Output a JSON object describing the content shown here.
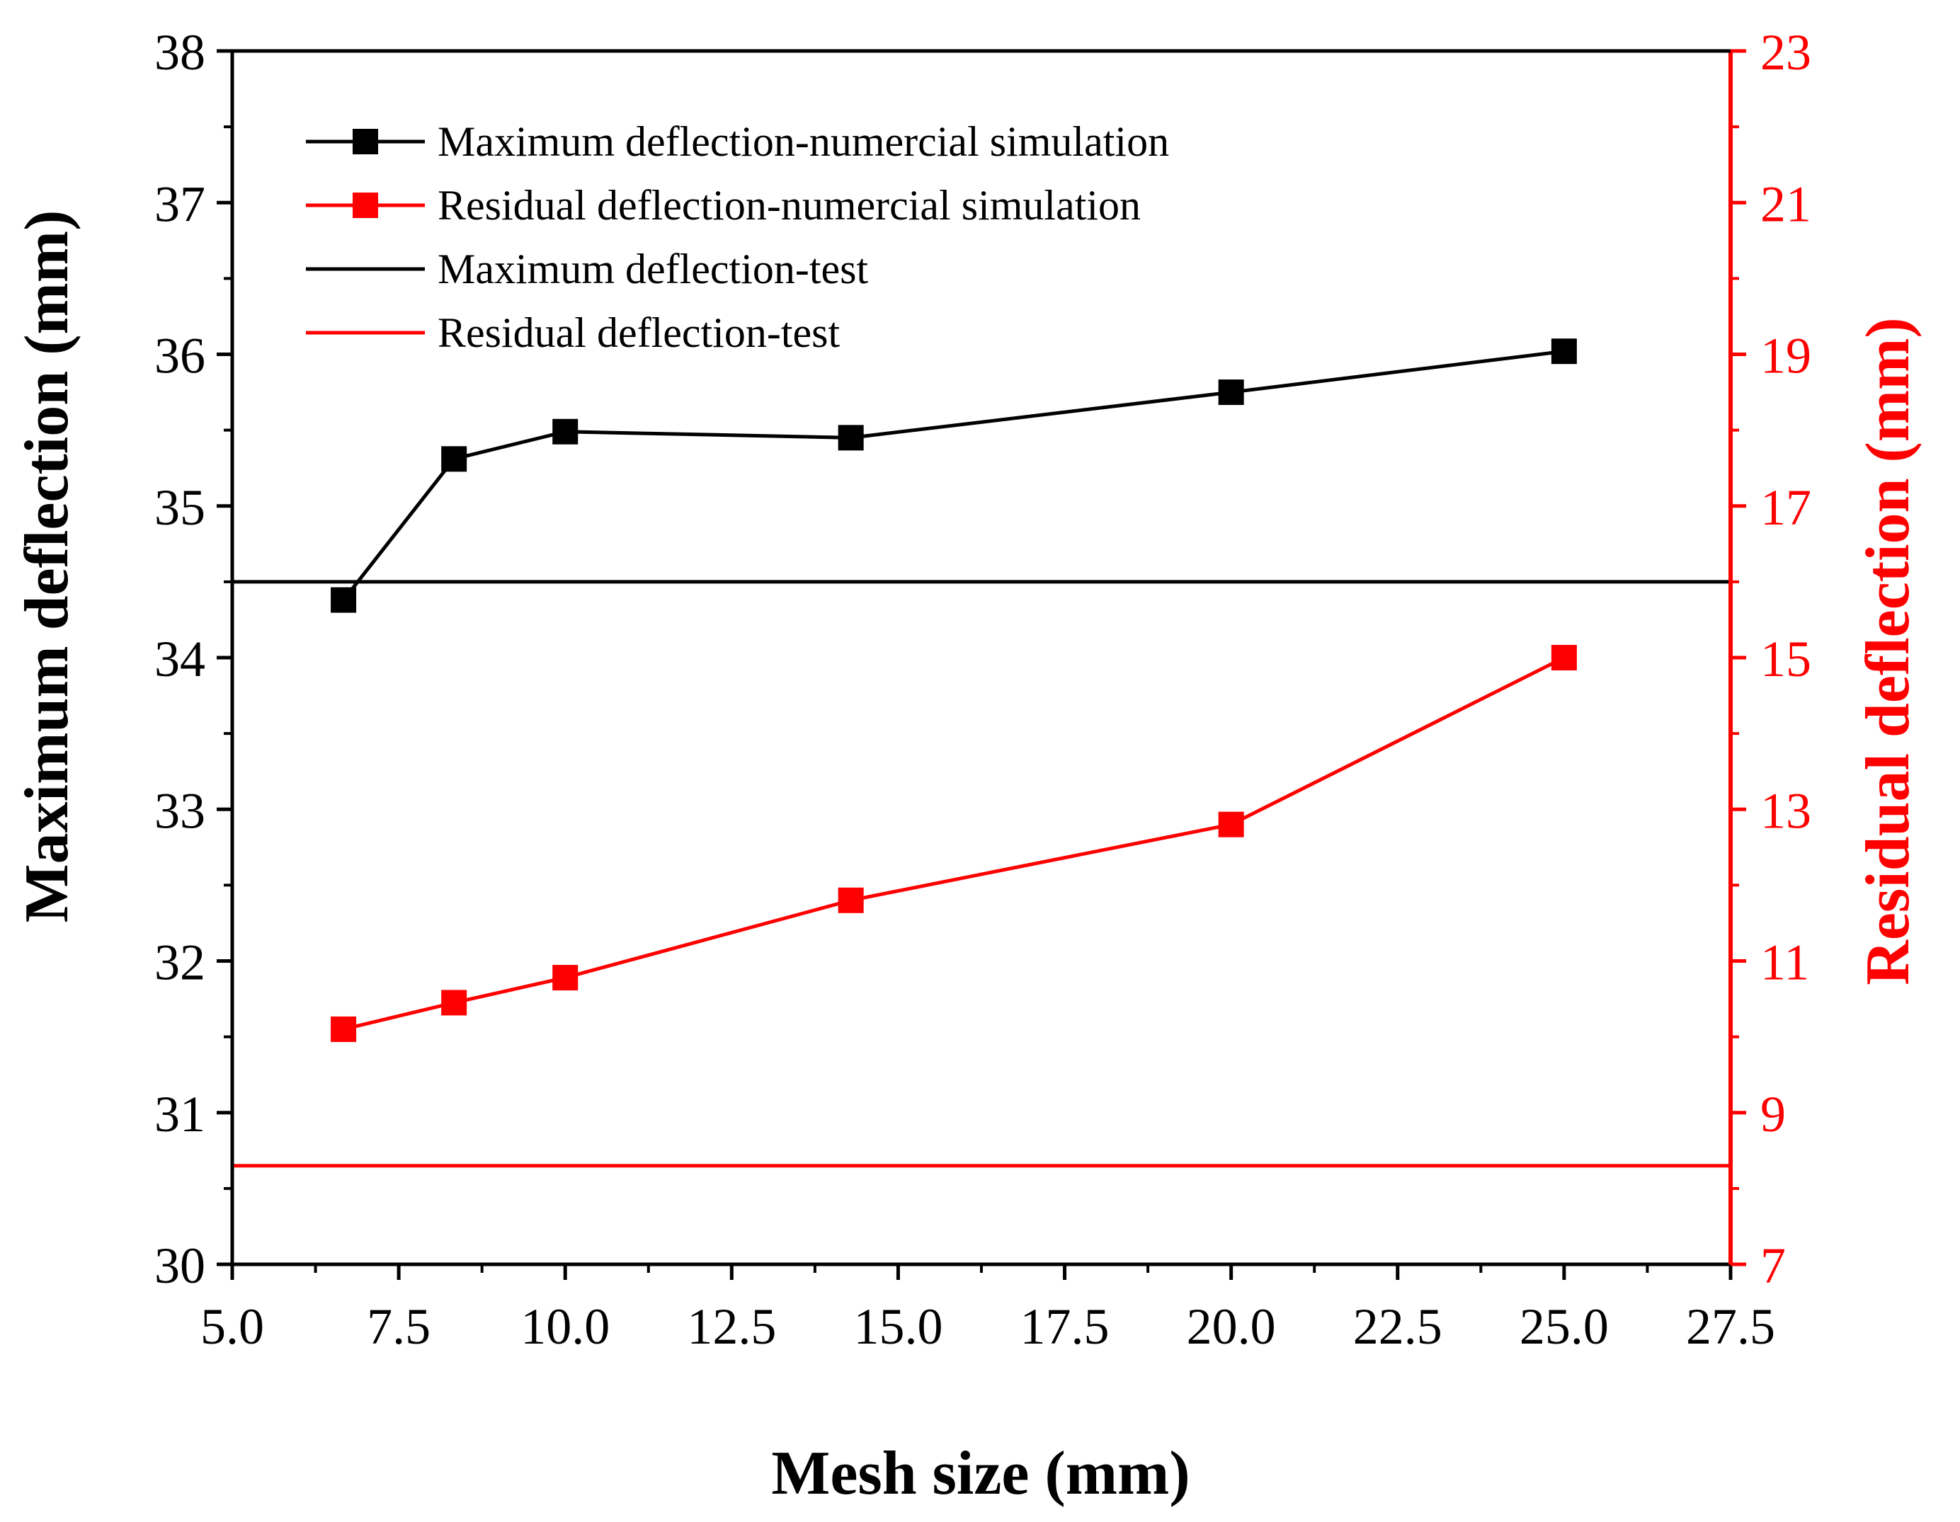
{
  "chart_data": {
    "type": "line",
    "xlabel": "Mesh size (mm)",
    "ylabel_left": "Maximum deflection (mm)",
    "ylabel_right": "Residual deflection (mm)",
    "xlim": [
      5.0,
      27.5
    ],
    "x_ticks": [
      5.0,
      7.5,
      10.0,
      12.5,
      15.0,
      17.5,
      20.0,
      22.5,
      25.0,
      27.5
    ],
    "x_tick_labels": [
      "5.0",
      "7.5",
      "10.0",
      "12.5",
      "15.0",
      "17.5",
      "20.0",
      "22.5",
      "25.0",
      "27.5"
    ],
    "ylim_left": [
      30,
      38
    ],
    "y_ticks_left": [
      30,
      31,
      32,
      33,
      34,
      35,
      36,
      37,
      38
    ],
    "y_tick_labels_left": [
      "30",
      "31",
      "32",
      "33",
      "34",
      "35",
      "36",
      "37",
      "38"
    ],
    "ylim_right": [
      7,
      23
    ],
    "y_ticks_right": [
      7,
      9,
      11,
      13,
      15,
      17,
      19,
      21,
      23
    ],
    "y_tick_labels_right": [
      "7",
      "9",
      "11",
      "13",
      "15",
      "17",
      "19",
      "21",
      "23"
    ],
    "colors": {
      "left_axis": "#000000",
      "right_axis": "#ff0000"
    },
    "series": [
      {
        "name": "Maximum deflection-numercial simulation",
        "axis": "left",
        "style": "line-marker",
        "color": "#000000",
        "x": [
          6.67,
          8.33,
          10.0,
          14.29,
          20.0,
          25.0
        ],
        "values": [
          34.38,
          35.31,
          35.49,
          35.45,
          35.75,
          36.02
        ]
      },
      {
        "name": "Residual deflection-numercial simulation",
        "axis": "right",
        "style": "line-marker",
        "color": "#ff0000",
        "x": [
          6.67,
          8.33,
          10.0,
          14.29,
          20.0,
          25.0
        ],
        "values": [
          10.1,
          10.45,
          10.78,
          11.8,
          12.8,
          15.0
        ]
      },
      {
        "name": "Maximum deflection-test",
        "axis": "left",
        "style": "hline",
        "color": "#000000",
        "value": 34.5
      },
      {
        "name": "Residual deflection-test",
        "axis": "right",
        "style": "hline",
        "color": "#ff0000",
        "value": 8.3
      }
    ],
    "legend_position": "top-left"
  }
}
